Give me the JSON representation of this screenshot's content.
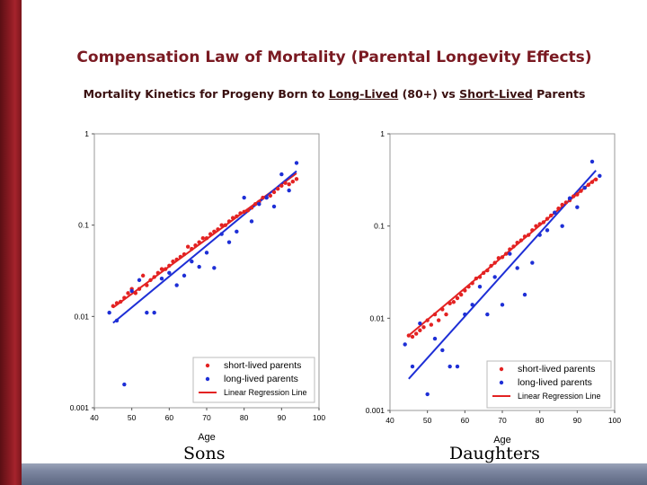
{
  "slide": {
    "title": "Compensation Law of Mortality (Parental Longevity Effects)",
    "subtitle_pre": "Mortality Kinetics for Progeny Born to ",
    "subtitle_u1": "Long-Lived",
    "subtitle_mid": " (80+) vs ",
    "subtitle_u2": "Short-Lived",
    "subtitle_post": " Parents",
    "colors": {
      "bar": "#8a1a22",
      "title": "#7a1a22",
      "footer": "#7c86a0"
    }
  },
  "chart_data": [
    {
      "type": "scatter",
      "panel_label": "Sons",
      "xlabel": "Age",
      "ylabel": "",
      "xlim": [
        40,
        100
      ],
      "ylim": [
        0.001,
        1
      ],
      "yscale": "log",
      "xticks": [
        "40",
        "50",
        "60",
        "70",
        "80",
        "90",
        "100"
      ],
      "yticks": [
        "1",
        "0.1",
        "0.01",
        "0.001"
      ],
      "legend": [
        "short-lived parents",
        "long-lived parents",
        "Linear Regression Line"
      ],
      "series": [
        {
          "name": "short-lived parents",
          "color": "#e32222",
          "x": [
            45,
            46,
            47,
            48,
            49,
            50,
            51,
            52,
            53,
            54,
            55,
            56,
            57,
            58,
            59,
            60,
            61,
            62,
            63,
            64,
            65,
            66,
            67,
            68,
            69,
            70,
            71,
            72,
            73,
            74,
            75,
            76,
            77,
            78,
            79,
            80,
            81,
            82,
            83,
            84,
            85,
            86,
            87,
            88,
            89,
            90,
            91,
            92,
            93,
            94
          ],
          "y": [
            0.013,
            0.014,
            0.0145,
            0.016,
            0.018,
            0.02,
            0.018,
            0.02,
            0.028,
            0.022,
            0.025,
            0.027,
            0.03,
            0.033,
            0.033,
            0.036,
            0.04,
            0.042,
            0.045,
            0.048,
            0.058,
            0.055,
            0.06,
            0.065,
            0.072,
            0.072,
            0.08,
            0.085,
            0.09,
            0.1,
            0.1,
            0.11,
            0.12,
            0.125,
            0.135,
            0.14,
            0.145,
            0.155,
            0.17,
            0.18,
            0.2,
            0.2,
            0.21,
            0.23,
            0.25,
            0.27,
            0.29,
            0.28,
            0.3,
            0.32
          ]
        },
        {
          "name": "long-lived parents",
          "color": "#1e2fd6",
          "x": [
            44,
            46,
            48,
            50,
            52,
            54,
            56,
            58,
            60,
            62,
            64,
            66,
            68,
            70,
            72,
            74,
            76,
            78,
            80,
            82,
            84,
            86,
            88,
            90,
            92,
            94
          ],
          "y": [
            0.011,
            0.009,
            0.0018,
            0.019,
            0.025,
            0.011,
            0.011,
            0.026,
            0.03,
            0.022,
            0.028,
            0.04,
            0.035,
            0.05,
            0.034,
            0.08,
            0.065,
            0.085,
            0.2,
            0.11,
            0.17,
            0.2,
            0.16,
            0.36,
            0.24,
            0.48
          ]
        },
        {
          "name": "Linear Regression Line",
          "color": "#e32222",
          "type": "line",
          "x": [
            45,
            94
          ],
          "y": [
            0.0125,
            0.37
          ]
        },
        {
          "name": "Linear Regression Line",
          "color": "#1e2fd6",
          "type": "line",
          "x": [
            45,
            94
          ],
          "y": [
            0.0085,
            0.39
          ]
        }
      ]
    },
    {
      "type": "scatter",
      "panel_label": "Daughters",
      "xlabel": "Age",
      "ylabel": "",
      "xlim": [
        40,
        100
      ],
      "ylim": [
        0.001,
        1
      ],
      "yscale": "log",
      "xticks": [
        "40",
        "50",
        "60",
        "70",
        "80",
        "90",
        "100"
      ],
      "yticks": [
        "1",
        "0.1",
        "0.01",
        "0.001"
      ],
      "legend": [
        "short-lived parents",
        "long-lived parents",
        "Linear Regression Line"
      ],
      "series": [
        {
          "name": "short-lived parents",
          "color": "#e32222",
          "x": [
            45,
            46,
            47,
            48,
            49,
            50,
            51,
            52,
            53,
            54,
            55,
            56,
            57,
            58,
            59,
            60,
            61,
            62,
            63,
            64,
            65,
            66,
            67,
            68,
            69,
            70,
            71,
            72,
            73,
            74,
            75,
            76,
            77,
            78,
            79,
            80,
            81,
            82,
            83,
            84,
            85,
            86,
            87,
            88,
            89,
            90,
            91,
            92,
            93,
            94,
            95
          ],
          "y": [
            0.0065,
            0.0063,
            0.0068,
            0.0074,
            0.008,
            0.0095,
            0.0085,
            0.011,
            0.0095,
            0.0125,
            0.011,
            0.0145,
            0.015,
            0.0165,
            0.018,
            0.02,
            0.022,
            0.024,
            0.027,
            0.028,
            0.031,
            0.033,
            0.037,
            0.04,
            0.045,
            0.046,
            0.05,
            0.056,
            0.06,
            0.066,
            0.07,
            0.077,
            0.08,
            0.09,
            0.1,
            0.105,
            0.11,
            0.12,
            0.13,
            0.14,
            0.155,
            0.17,
            0.18,
            0.19,
            0.21,
            0.22,
            0.24,
            0.26,
            0.28,
            0.3,
            0.32
          ]
        },
        {
          "name": "long-lived parents",
          "color": "#1e2fd6",
          "x": [
            44,
            46,
            48,
            50,
            52,
            54,
            56,
            58,
            60,
            62,
            64,
            66,
            68,
            70,
            72,
            74,
            76,
            78,
            80,
            82,
            84,
            86,
            88,
            90,
            92,
            94,
            96
          ],
          "y": [
            0.0052,
            0.003,
            0.0088,
            0.0015,
            0.006,
            0.0045,
            0.003,
            0.003,
            0.011,
            0.014,
            0.022,
            0.011,
            0.028,
            0.014,
            0.05,
            0.035,
            0.018,
            0.04,
            0.08,
            0.09,
            0.14,
            0.1,
            0.2,
            0.16,
            0.26,
            0.5,
            0.35
          ]
        },
        {
          "name": "Linear Regression Line",
          "color": "#e32222",
          "type": "line",
          "x": [
            45,
            95
          ],
          "y": [
            0.0065,
            0.33
          ]
        },
        {
          "name": "Linear Regression Line",
          "color": "#1e2fd6",
          "type": "line",
          "x": [
            45,
            95
          ],
          "y": [
            0.0022,
            0.4
          ]
        }
      ]
    }
  ]
}
